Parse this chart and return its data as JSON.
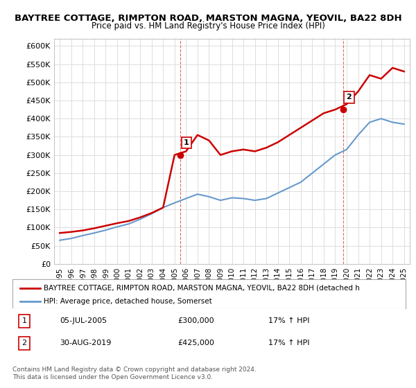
{
  "title_line1": "BAYTREE COTTAGE, RIMPTON ROAD, MARSTON MAGNA, YEOVIL, BA22 8DH",
  "title_line2": "Price paid vs. HM Land Registry's House Price Index (HPI)",
  "ylabel_ticks": [
    "£0",
    "£50K",
    "£100K",
    "£150K",
    "£200K",
    "£250K",
    "£300K",
    "£350K",
    "£400K",
    "£450K",
    "£500K",
    "£550K",
    "£600K"
  ],
  "ytick_values": [
    0,
    50000,
    100000,
    150000,
    200000,
    250000,
    300000,
    350000,
    400000,
    450000,
    500000,
    550000,
    600000
  ],
  "ylim": [
    0,
    620000
  ],
  "years": [
    1995,
    1996,
    1997,
    1998,
    1999,
    2000,
    2001,
    2002,
    2003,
    2004,
    2005,
    2006,
    2007,
    2008,
    2009,
    2010,
    2011,
    2012,
    2013,
    2014,
    2015,
    2016,
    2017,
    2018,
    2019,
    2020,
    2021,
    2022,
    2023,
    2024,
    2025
  ],
  "hpi_values": [
    65000,
    70000,
    78000,
    85000,
    93000,
    102000,
    110000,
    123000,
    138000,
    155000,
    168000,
    180000,
    192000,
    185000,
    175000,
    182000,
    180000,
    175000,
    180000,
    195000,
    210000,
    225000,
    250000,
    275000,
    300000,
    315000,
    355000,
    390000,
    400000,
    390000,
    385000
  ],
  "property_values": [
    85000,
    88000,
    92000,
    98000,
    105000,
    112000,
    118000,
    128000,
    140000,
    155000,
    300000,
    310000,
    355000,
    340000,
    300000,
    310000,
    315000,
    310000,
    320000,
    335000,
    355000,
    375000,
    395000,
    415000,
    425000,
    440000,
    475000,
    520000,
    510000,
    540000,
    530000
  ],
  "purchase1_year": 2005.5,
  "purchase1_value": 300000,
  "purchase1_label": "1",
  "purchase2_year": 2019.67,
  "purchase2_value": 425000,
  "purchase2_label": "2",
  "line_color_property": "#cc0000",
  "line_color_hpi": "#6699cc",
  "marker_color": "#cc0000",
  "purchase_box_color": "#cc0000",
  "legend_text1": "BAYTREE COTTAGE, RIMPTON ROAD, MARSTON MAGNA, YEOVIL, BA22 8DH (detached h",
  "legend_text2": "HPI: Average price, detached house, Somerset",
  "table_row1": [
    "1",
    "05-JUL-2005",
    "£300,000",
    "17% ↑ HPI"
  ],
  "table_row2": [
    "2",
    "30-AUG-2019",
    "£425,000",
    "17% ↑ HPI"
  ],
  "footer_text": "Contains HM Land Registry data © Crown copyright and database right 2024.\nThis data is licensed under the Open Government Licence v3.0.",
  "background_color": "#ffffff",
  "grid_color": "#dddddd"
}
